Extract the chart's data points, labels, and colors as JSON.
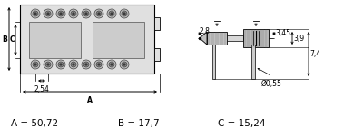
{
  "bg_color": "#ffffff",
  "text_color": "#000000",
  "body_color": "#e0e0e0",
  "hole_color": "#d8d8d8",
  "hatch_color": "#888888",
  "footer_A": "A = 50,72",
  "footer_B": "B = 17,7",
  "footer_C": "C = 15,24",
  "label_2_54": "2,54",
  "label_A": "A",
  "label_B": "B",
  "label_C": "C",
  "label_28": "2,8",
  "label_345": "3,45",
  "label_39": "3,9",
  "label_74": "7,4",
  "label_055": "Ø0,55",
  "n_contacts": 8,
  "contact_pitch": 14.0,
  "contact_outer_r": 5.0,
  "contact_mid_r": 3.0,
  "contact_inner_r": 1.2
}
